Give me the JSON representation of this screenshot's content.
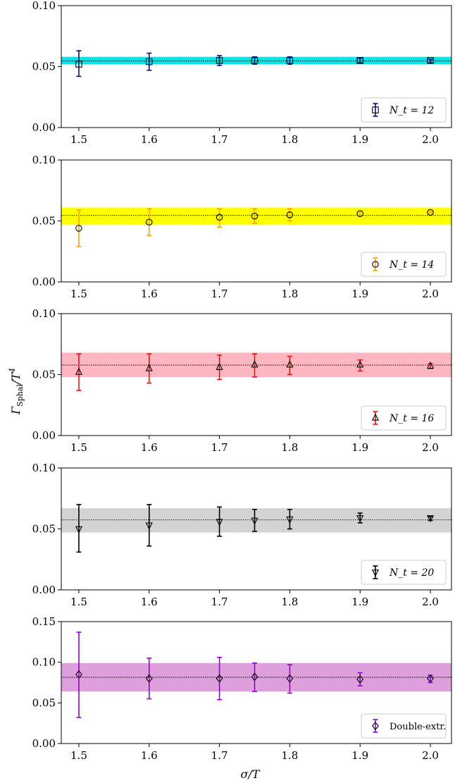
{
  "colors": {
    "axis": "#000000",
    "mean_line": "#000000"
  },
  "chart_data": [
    {
      "type": "scatter",
      "ylim": [
        0,
        0.1
      ],
      "xlim": [
        1.475,
        2.03
      ],
      "xticks": [
        "1.5",
        "1.6",
        "1.7",
        "1.8",
        "1.9",
        "2.0"
      ],
      "yticks": [
        "0.00",
        "0.05",
        "0.10"
      ],
      "band": {
        "low": 0.052,
        "high": 0.058,
        "mean": 0.0547,
        "color": "#00e5e5"
      },
      "series": [
        {
          "name": "N_t = 12",
          "marker": "square",
          "color": "#0a0a8c",
          "marker_face": "none",
          "points": [
            {
              "x": 1.5,
              "y": 0.052,
              "lo": 0.042,
              "hi": 0.063
            },
            {
              "x": 1.6,
              "y": 0.054,
              "lo": 0.047,
              "hi": 0.061
            },
            {
              "x": 1.7,
              "y": 0.055,
              "lo": 0.051,
              "hi": 0.059
            },
            {
              "x": 1.75,
              "y": 0.055,
              "lo": 0.052,
              "hi": 0.058
            },
            {
              "x": 1.8,
              "y": 0.055,
              "lo": 0.052,
              "hi": 0.058
            },
            {
              "x": 1.9,
              "y": 0.055,
              "lo": 0.053,
              "hi": 0.057
            },
            {
              "x": 2.0,
              "y": 0.055,
              "lo": 0.053,
              "hi": 0.056
            }
          ]
        }
      ],
      "legend": {
        "label": "N_t = 12",
        "position": "lower right"
      }
    },
    {
      "type": "scatter",
      "ylim": [
        0,
        0.1
      ],
      "xlim": [
        1.475,
        2.03
      ],
      "xticks": [
        "1.5",
        "1.6",
        "1.7",
        "1.8",
        "1.9",
        "2.0"
      ],
      "yticks": [
        "0.00",
        "0.05",
        "0.10"
      ],
      "band": {
        "low": 0.047,
        "high": 0.061,
        "mean": 0.0545,
        "color": "#ffff00"
      },
      "series": [
        {
          "name": "N_t = 14",
          "marker": "circle",
          "color": "#ffa500",
          "marker_face": "none",
          "points": [
            {
              "x": 1.5,
              "y": 0.044,
              "lo": 0.029,
              "hi": 0.059
            },
            {
              "x": 1.6,
              "y": 0.049,
              "lo": 0.038,
              "hi": 0.06
            },
            {
              "x": 1.7,
              "y": 0.053,
              "lo": 0.045,
              "hi": 0.06
            },
            {
              "x": 1.75,
              "y": 0.054,
              "lo": 0.048,
              "hi": 0.06
            },
            {
              "x": 1.8,
              "y": 0.055,
              "lo": 0.05,
              "hi": 0.06
            },
            {
              "x": 1.9,
              "y": 0.056,
              "lo": 0.054,
              "hi": 0.058
            },
            {
              "x": 2.0,
              "y": 0.057,
              "lo": 0.056,
              "hi": 0.058
            }
          ]
        }
      ],
      "legend": {
        "label": "N_t = 14",
        "position": "lower right"
      }
    },
    {
      "type": "scatter",
      "ylim": [
        0,
        0.1
      ],
      "xlim": [
        1.475,
        2.03
      ],
      "xticks": [
        "1.5",
        "1.6",
        "1.7",
        "1.8",
        "1.9",
        "2.0"
      ],
      "yticks": [
        "0.00",
        "0.05",
        "0.10"
      ],
      "band": {
        "low": 0.048,
        "high": 0.068,
        "mean": 0.0578,
        "color": "#ffb6c1"
      },
      "series": [
        {
          "name": "N_t = 16",
          "marker": "triangle-up",
          "color": "#ee1111",
          "marker_face": "none",
          "points": [
            {
              "x": 1.5,
              "y": 0.052,
              "lo": 0.037,
              "hi": 0.067
            },
            {
              "x": 1.6,
              "y": 0.055,
              "lo": 0.043,
              "hi": 0.067
            },
            {
              "x": 1.7,
              "y": 0.056,
              "lo": 0.046,
              "hi": 0.066
            },
            {
              "x": 1.75,
              "y": 0.058,
              "lo": 0.048,
              "hi": 0.067
            },
            {
              "x": 1.8,
              "y": 0.058,
              "lo": 0.05,
              "hi": 0.065
            },
            {
              "x": 1.9,
              "y": 0.058,
              "lo": 0.053,
              "hi": 0.062
            },
            {
              "x": 2.0,
              "y": 0.057,
              "lo": 0.055,
              "hi": 0.059
            }
          ]
        }
      ],
      "legend": {
        "label": "N_t = 16",
        "position": "lower right"
      }
    },
    {
      "type": "scatter",
      "ylim": [
        0,
        0.1
      ],
      "xlim": [
        1.475,
        2.03
      ],
      "xticks": [
        "1.5",
        "1.6",
        "1.7",
        "1.8",
        "1.9",
        "2.0"
      ],
      "yticks": [
        "0.00",
        "0.05",
        "0.10"
      ],
      "band": {
        "low": 0.047,
        "high": 0.067,
        "mean": 0.0574,
        "color": "#d3d3d3"
      },
      "series": [
        {
          "name": "N_t = 20",
          "marker": "triangle-down",
          "color": "#000000",
          "marker_face": "none",
          "points": [
            {
              "x": 1.5,
              "y": 0.05,
              "lo": 0.031,
              "hi": 0.07
            },
            {
              "x": 1.6,
              "y": 0.053,
              "lo": 0.036,
              "hi": 0.07
            },
            {
              "x": 1.7,
              "y": 0.056,
              "lo": 0.044,
              "hi": 0.068
            },
            {
              "x": 1.75,
              "y": 0.057,
              "lo": 0.048,
              "hi": 0.066
            },
            {
              "x": 1.8,
              "y": 0.058,
              "lo": 0.05,
              "hi": 0.066
            },
            {
              "x": 1.9,
              "y": 0.059,
              "lo": 0.055,
              "hi": 0.063
            },
            {
              "x": 2.0,
              "y": 0.059,
              "lo": 0.057,
              "hi": 0.06
            }
          ]
        }
      ],
      "legend": {
        "label": "N_t = 20",
        "position": "lower right"
      }
    },
    {
      "type": "scatter",
      "ylim": [
        0,
        0.15
      ],
      "xlim": [
        1.475,
        2.03
      ],
      "xticks": [
        "1.5",
        "1.6",
        "1.7",
        "1.8",
        "1.9",
        "2.0"
      ],
      "yticks": [
        "0.00",
        "0.05",
        "0.10",
        "0.15"
      ],
      "band": {
        "low": 0.064,
        "high": 0.099,
        "mean": 0.0815,
        "color": "#dda0dd"
      },
      "series": [
        {
          "name": "Double-extr.",
          "marker": "diamond",
          "color": "#9400d3",
          "marker_face": "none",
          "points": [
            {
              "x": 1.5,
              "y": 0.085,
              "lo": 0.032,
              "hi": 0.137
            },
            {
              "x": 1.6,
              "y": 0.08,
              "lo": 0.055,
              "hi": 0.105
            },
            {
              "x": 1.7,
              "y": 0.08,
              "lo": 0.054,
              "hi": 0.106
            },
            {
              "x": 1.75,
              "y": 0.082,
              "lo": 0.064,
              "hi": 0.099
            },
            {
              "x": 1.8,
              "y": 0.08,
              "lo": 0.062,
              "hi": 0.097
            },
            {
              "x": 1.9,
              "y": 0.079,
              "lo": 0.071,
              "hi": 0.087
            },
            {
              "x": 2.0,
              "y": 0.08,
              "lo": 0.075,
              "hi": 0.084
            }
          ]
        }
      ],
      "legend": {
        "label": "Double-extr.",
        "position": "lower right"
      }
    }
  ],
  "xlabel": "σ/T",
  "ylabel_main": "Γ",
  "ylabel_sub": "Sphal",
  "ylabel_rest": "/T",
  "ylabel_sup": "4"
}
